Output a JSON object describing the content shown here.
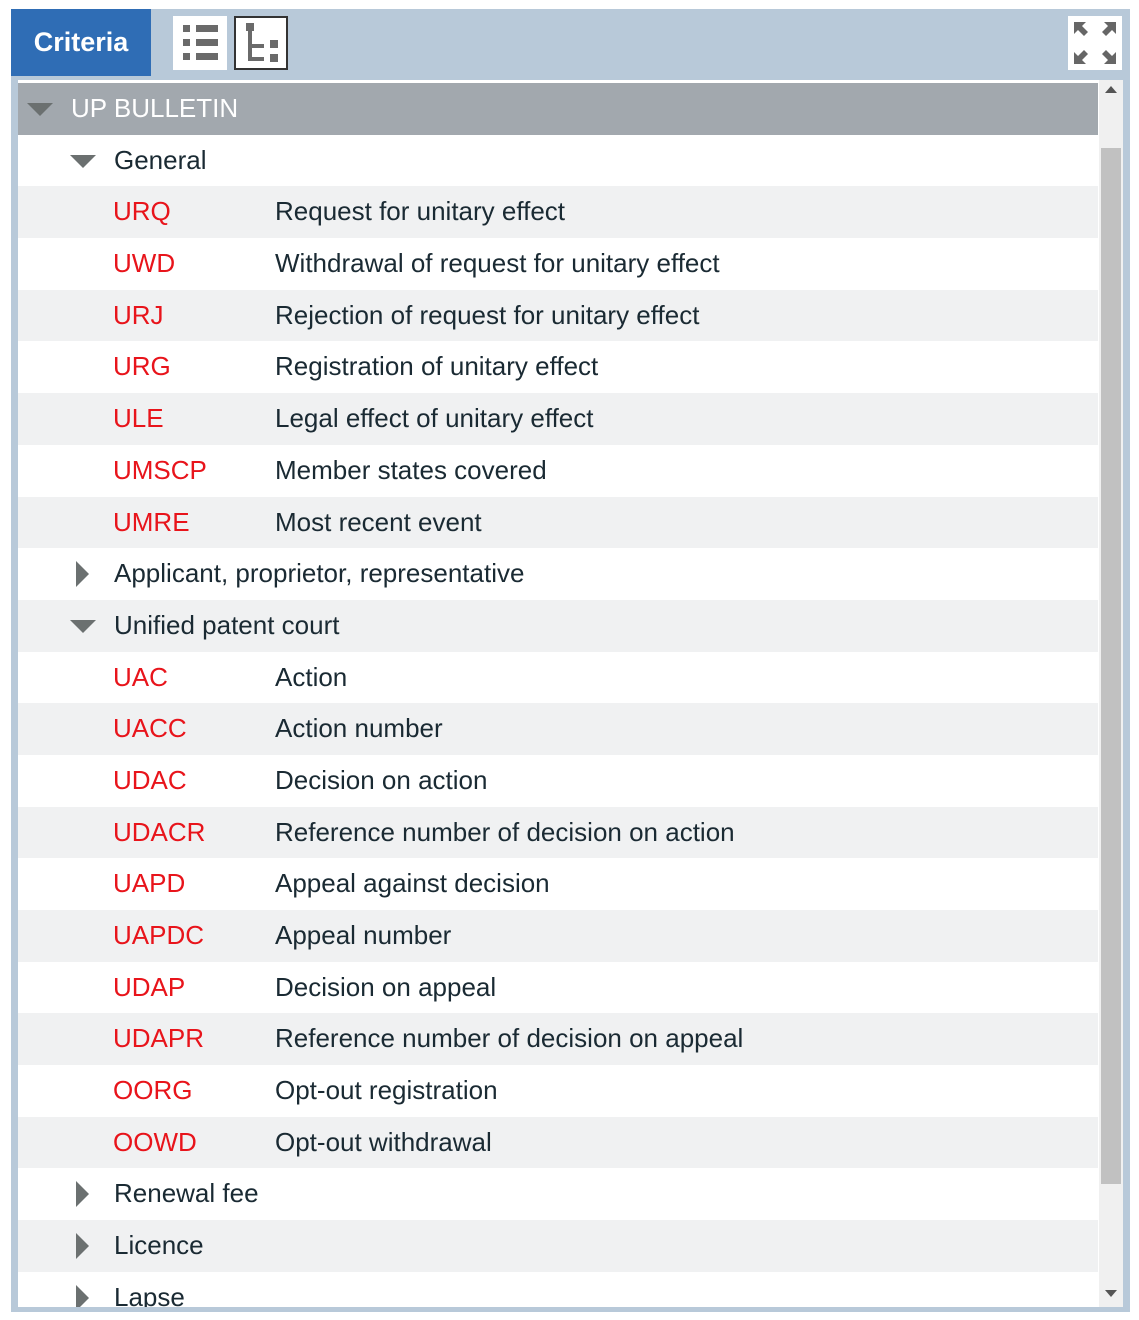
{
  "header": {
    "tab_label": "Criteria",
    "list_view_icon": "list-icon",
    "tree_view_icon": "tree-icon",
    "expand_icon": "expand-arrows-icon"
  },
  "colors": {
    "tab": "#2f6db5",
    "frame": "#b8c9d9",
    "root_row": "#a2a8ae",
    "code": "#e8141b"
  },
  "tree": {
    "root": {
      "label": "UP BULLETIN",
      "expanded": true
    },
    "rows": [
      {
        "type": "group",
        "label": "General",
        "expanded": true
      },
      {
        "type": "item",
        "code": "URQ",
        "desc": "Request for unitary effect"
      },
      {
        "type": "item",
        "code": "UWD",
        "desc": "Withdrawal of request for unitary effect"
      },
      {
        "type": "item",
        "code": "URJ",
        "desc": "Rejection of request for unitary effect"
      },
      {
        "type": "item",
        "code": "URG",
        "desc": "Registration of unitary effect"
      },
      {
        "type": "item",
        "code": "ULE",
        "desc": "Legal effect of unitary effect"
      },
      {
        "type": "item",
        "code": "UMSCP",
        "desc": "Member states covered"
      },
      {
        "type": "item",
        "code": "UMRE",
        "desc": "Most recent event"
      },
      {
        "type": "group",
        "label": "Applicant, proprietor, representative",
        "expanded": false
      },
      {
        "type": "group",
        "label": "Unified patent court",
        "expanded": true
      },
      {
        "type": "item",
        "code": "UAC",
        "desc": "Action"
      },
      {
        "type": "item",
        "code": "UACC",
        "desc": "Action number"
      },
      {
        "type": "item",
        "code": "UDAC",
        "desc": "Decision on action"
      },
      {
        "type": "item",
        "code": "UDACR",
        "desc": "Reference number of decision on action"
      },
      {
        "type": "item",
        "code": "UAPD",
        "desc": "Appeal against decision"
      },
      {
        "type": "item",
        "code": "UAPDC",
        "desc": "Appeal number"
      },
      {
        "type": "item",
        "code": "UDAP",
        "desc": "Decision on appeal"
      },
      {
        "type": "item",
        "code": "UDAPR",
        "desc": "Reference number of decision on appeal"
      },
      {
        "type": "item",
        "code": "OORG",
        "desc": "Opt-out registration"
      },
      {
        "type": "item",
        "code": "OOWD",
        "desc": "Opt-out withdrawal"
      },
      {
        "type": "group",
        "label": "Renewal fee",
        "expanded": false
      },
      {
        "type": "group",
        "label": "Licence",
        "expanded": false
      },
      {
        "type": "group",
        "label": "Lapse",
        "expanded": false
      }
    ]
  }
}
